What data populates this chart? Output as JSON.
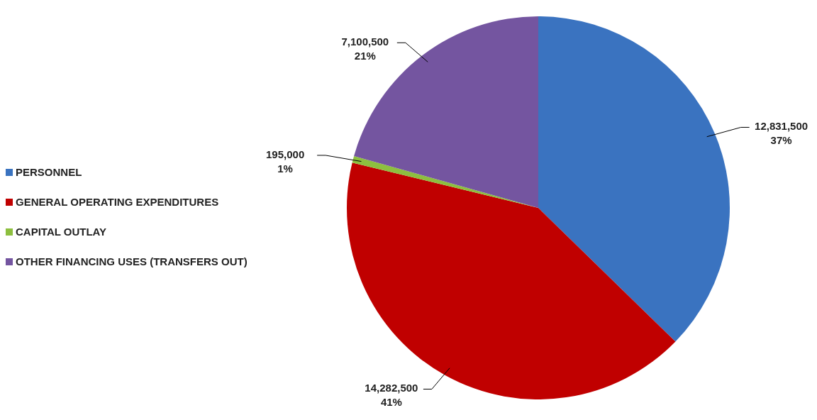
{
  "chart_data": {
    "type": "pie",
    "categories": [
      "PERSONNEL",
      "GENERAL OPERATING EXPENDITURES",
      "CAPITAL OUTLAY",
      "OTHER FINANCING USES (TRANSFERS OUT)"
    ],
    "values": [
      12831500,
      14282500,
      195000,
      7100500
    ],
    "colors": [
      "#3a73c0",
      "#c00000",
      "#8dbf3f",
      "#7455a0"
    ],
    "value_labels": [
      "12,831,500\n37%",
      "14,282,500\n41%",
      "195,000\n1%",
      "7,100,500\n21%"
    ],
    "legend": "left"
  }
}
